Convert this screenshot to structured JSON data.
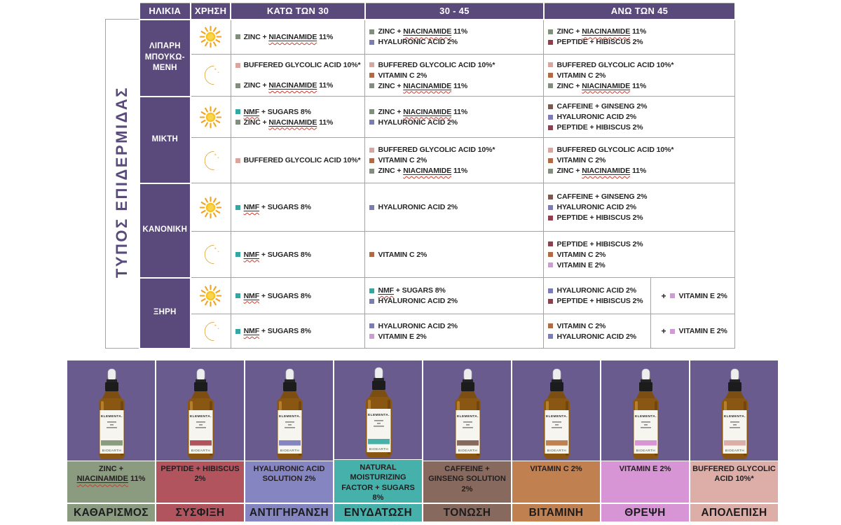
{
  "palette": {
    "header_purple": "#5a4a7b",
    "strip_purple": "#695b8d",
    "grid_gray": "#a3a3a3",
    "text_ink": "#262626",
    "misspell_red": "#cc3b2f",
    "sun_gold": "#f7c325",
    "moon_gold": "#f2ab35"
  },
  "table": {
    "skin_type_axis": "ΤΥΠΟΣ ΕΠΙΔΕΡΜΙΔΑΣ",
    "headers": {
      "age": "ΗΛΙΚΙΑ",
      "use": "ΧΡΗΣΗ",
      "under30": "ΚΑΤΩ ΤΩΝ 30",
      "mid": "30 - 45",
      "over45": "ΑΝΩ ΤΩΝ 45"
    },
    "ingredients": {
      "zn": {
        "text": "ZINC + NIACINAMIDE 11%",
        "color": "#7f8f7c",
        "mark": "NIACINAMIDE"
      },
      "ha": {
        "text": "HYALURONIC ACID 2%",
        "color": "#7b7cb5"
      },
      "ph": {
        "text": "PEPTIDE + HIBISCUS 2%",
        "color": "#8e3e4d"
      },
      "bga": {
        "text": "BUFFERED GLYCOLIC ACID 10%*",
        "color": "#d8a69e"
      },
      "vc": {
        "text": "VITAMIN C 2%",
        "color": "#b06a45"
      },
      "nmf": {
        "text": "NMF + SUGARS 8%",
        "color": "#35a7a1",
        "mark": "NMF"
      },
      "cg": {
        "text": "CAFFEINE + GINSENG 2%",
        "color": "#7a5a4e"
      },
      "ve": {
        "text": "VITAMIN E 2%",
        "color": "#cf9cd2"
      }
    },
    "groups": [
      {
        "label_lines": [
          "ΛΙΠΑΡΗ",
          "ΜΠΟΥΚΩ-",
          "ΜΕΝΗ"
        ],
        "rows": [
          {
            "time": "day",
            "under30": [
              "zn"
            ],
            "mid": [
              "zn",
              "ha"
            ],
            "over45": [
              "zn",
              "ph"
            ]
          },
          {
            "time": "night",
            "under30": {
              "items": [
                "bga",
                "zn"
              ],
              "spaced": true
            },
            "mid": [
              "bga",
              "vc",
              "zn"
            ],
            "over45": [
              "bga",
              "vc",
              "zn"
            ]
          }
        ]
      },
      {
        "label_lines": [
          "ΜΙΚΤΗ"
        ],
        "rows": [
          {
            "time": "day",
            "under30": [
              "nmf",
              "zn"
            ],
            "mid": [
              "zn",
              "ha"
            ],
            "over45": [
              "cg",
              "ha",
              "ph"
            ]
          },
          {
            "time": "night",
            "under30": [
              "bga"
            ],
            "mid": [
              "bga",
              "vc",
              "zn"
            ],
            "over45": [
              "bga",
              "vc",
              "zn"
            ]
          }
        ]
      },
      {
        "label_lines": [
          "ΚΑΝΟΝΙΚΗ"
        ],
        "rows": [
          {
            "time": "day",
            "under30": [
              "nmf"
            ],
            "mid": [
              "ha"
            ],
            "over45": [
              "cg",
              "ha",
              "ph"
            ]
          },
          {
            "time": "night",
            "under30": [
              "nmf"
            ],
            "mid": [
              "vc"
            ],
            "over45": [
              "ph",
              "vc",
              "ve"
            ]
          }
        ]
      },
      {
        "label_lines": [
          "ΞΗΡΗ"
        ],
        "rows": [
          {
            "time": "day",
            "under30": [
              "nmf"
            ],
            "mid": [
              "nmf",
              "ha"
            ],
            "over45": {
              "left": [
                "ha",
                "ph"
              ],
              "plus": "ve"
            }
          },
          {
            "time": "night",
            "under30": [
              "nmf"
            ],
            "mid": [
              "ha",
              "ve"
            ],
            "over45": {
              "left": [
                "vc",
                "ha"
              ],
              "plus": "ve"
            }
          }
        ]
      }
    ],
    "plus_sign": "+"
  },
  "products_section": {
    "bottle": {
      "brand": "ELEMENTA.",
      "maker": "BIOEARTH"
    },
    "products": [
      {
        "name_lines": [
          "ZINC +",
          "NIACINAMIDE 11%"
        ],
        "mark": "NIACINAMIDE",
        "label_bg": "#8a9b80",
        "category": "ΚΑΘΑΡΙΣΜΟΣ",
        "stripe": "#8a9b80"
      },
      {
        "name_lines": [
          "PEPTIDE + HIBISCUS",
          "2%"
        ],
        "label_bg": "#b1545e",
        "category": "ΣΥΣΦΙΞΗ",
        "stripe": "#b1545e"
      },
      {
        "name_lines": [
          "HYALURONIC ACID",
          "SOLUTION 2%"
        ],
        "label_bg": "#8585c2",
        "category": "ΑΝΤΙΓΗΡΑΝΣΗ",
        "stripe": "#8585c2"
      },
      {
        "name_lines": [
          "NATURAL",
          "MOISTURIZING",
          "FACTOR + SUGARS",
          "8%"
        ],
        "label_bg": "#46b1ab",
        "category": "ΕΝΥΔΑΤΩΣΗ",
        "stripe": "#46b1ab"
      },
      {
        "name_lines": [
          "CAFFEINE +",
          "GINSENG SOLUTION",
          "2%"
        ],
        "label_bg": "#876a5d",
        "category": "ΤΟΝΩΣΗ",
        "stripe": "#876a5d"
      },
      {
        "name_lines": [
          "VITAMIN C 2%"
        ],
        "label_bg": "#c0804f",
        "category": "ΒΙΤΑΜΙΝΗ",
        "stripe": "#c0804f"
      },
      {
        "name_lines": [
          "VITAMIN E 2%"
        ],
        "label_bg": "#d795d6",
        "category": "ΘΡΕΨΗ",
        "stripe": "#d795d6"
      },
      {
        "name_lines": [
          "BUFFERED GLYCOLIC",
          "ACID 10%*"
        ],
        "label_bg": "#ddada7",
        "category": "ΑΠΟΛΕΠΙΣΗ",
        "stripe": "#ddada7"
      }
    ]
  }
}
